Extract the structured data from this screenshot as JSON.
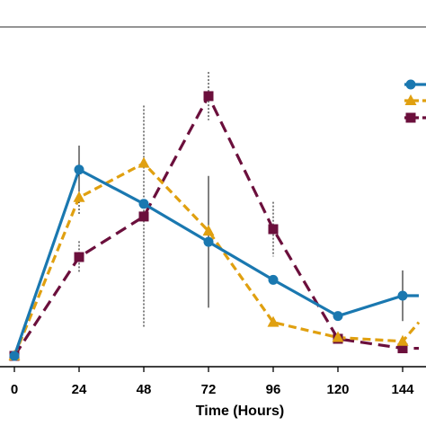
{
  "chart_data": {
    "type": "line",
    "xlabel": "Time (Hours)",
    "ylabel": "",
    "x_ticks": [
      0,
      24,
      48,
      72,
      96,
      120,
      144
    ],
    "x_range": [
      0,
      150
    ],
    "grid": false,
    "legend_position": "top-right",
    "series": [
      {
        "color": "#1a78b0",
        "marker": "circle",
        "line": "solid",
        "x": [
          0,
          24,
          48,
          72,
          96,
          120,
          144,
          150
        ],
        "y": [
          0.0,
          2.94,
          2.4,
          1.8,
          1.2,
          0.63,
          0.95,
          0.95
        ],
        "err": [
          null,
          0.38,
          null,
          1.04,
          null,
          null,
          0.4,
          null
        ]
      },
      {
        "color": "#e0a010",
        "marker": "triangle",
        "line": "dashed",
        "x": [
          0,
          24,
          48,
          72,
          96,
          120,
          144,
          150
        ],
        "y": [
          0.0,
          2.5,
          3.04,
          1.97,
          0.53,
          0.29,
          0.23,
          0.53
        ],
        "err": [
          null,
          0.28,
          null,
          null,
          null,
          null,
          null,
          null
        ]
      },
      {
        "color": "#6b0f3c",
        "marker": "square",
        "line": "dashed",
        "x": [
          0,
          24,
          48,
          72,
          96,
          120,
          144,
          150
        ],
        "y": [
          0.0,
          1.56,
          2.2,
          4.1,
          2.0,
          0.27,
          0.12,
          0.12
        ],
        "err": [
          null,
          0.25,
          1.75,
          0.38,
          0.43,
          null,
          null,
          null
        ]
      }
    ]
  }
}
